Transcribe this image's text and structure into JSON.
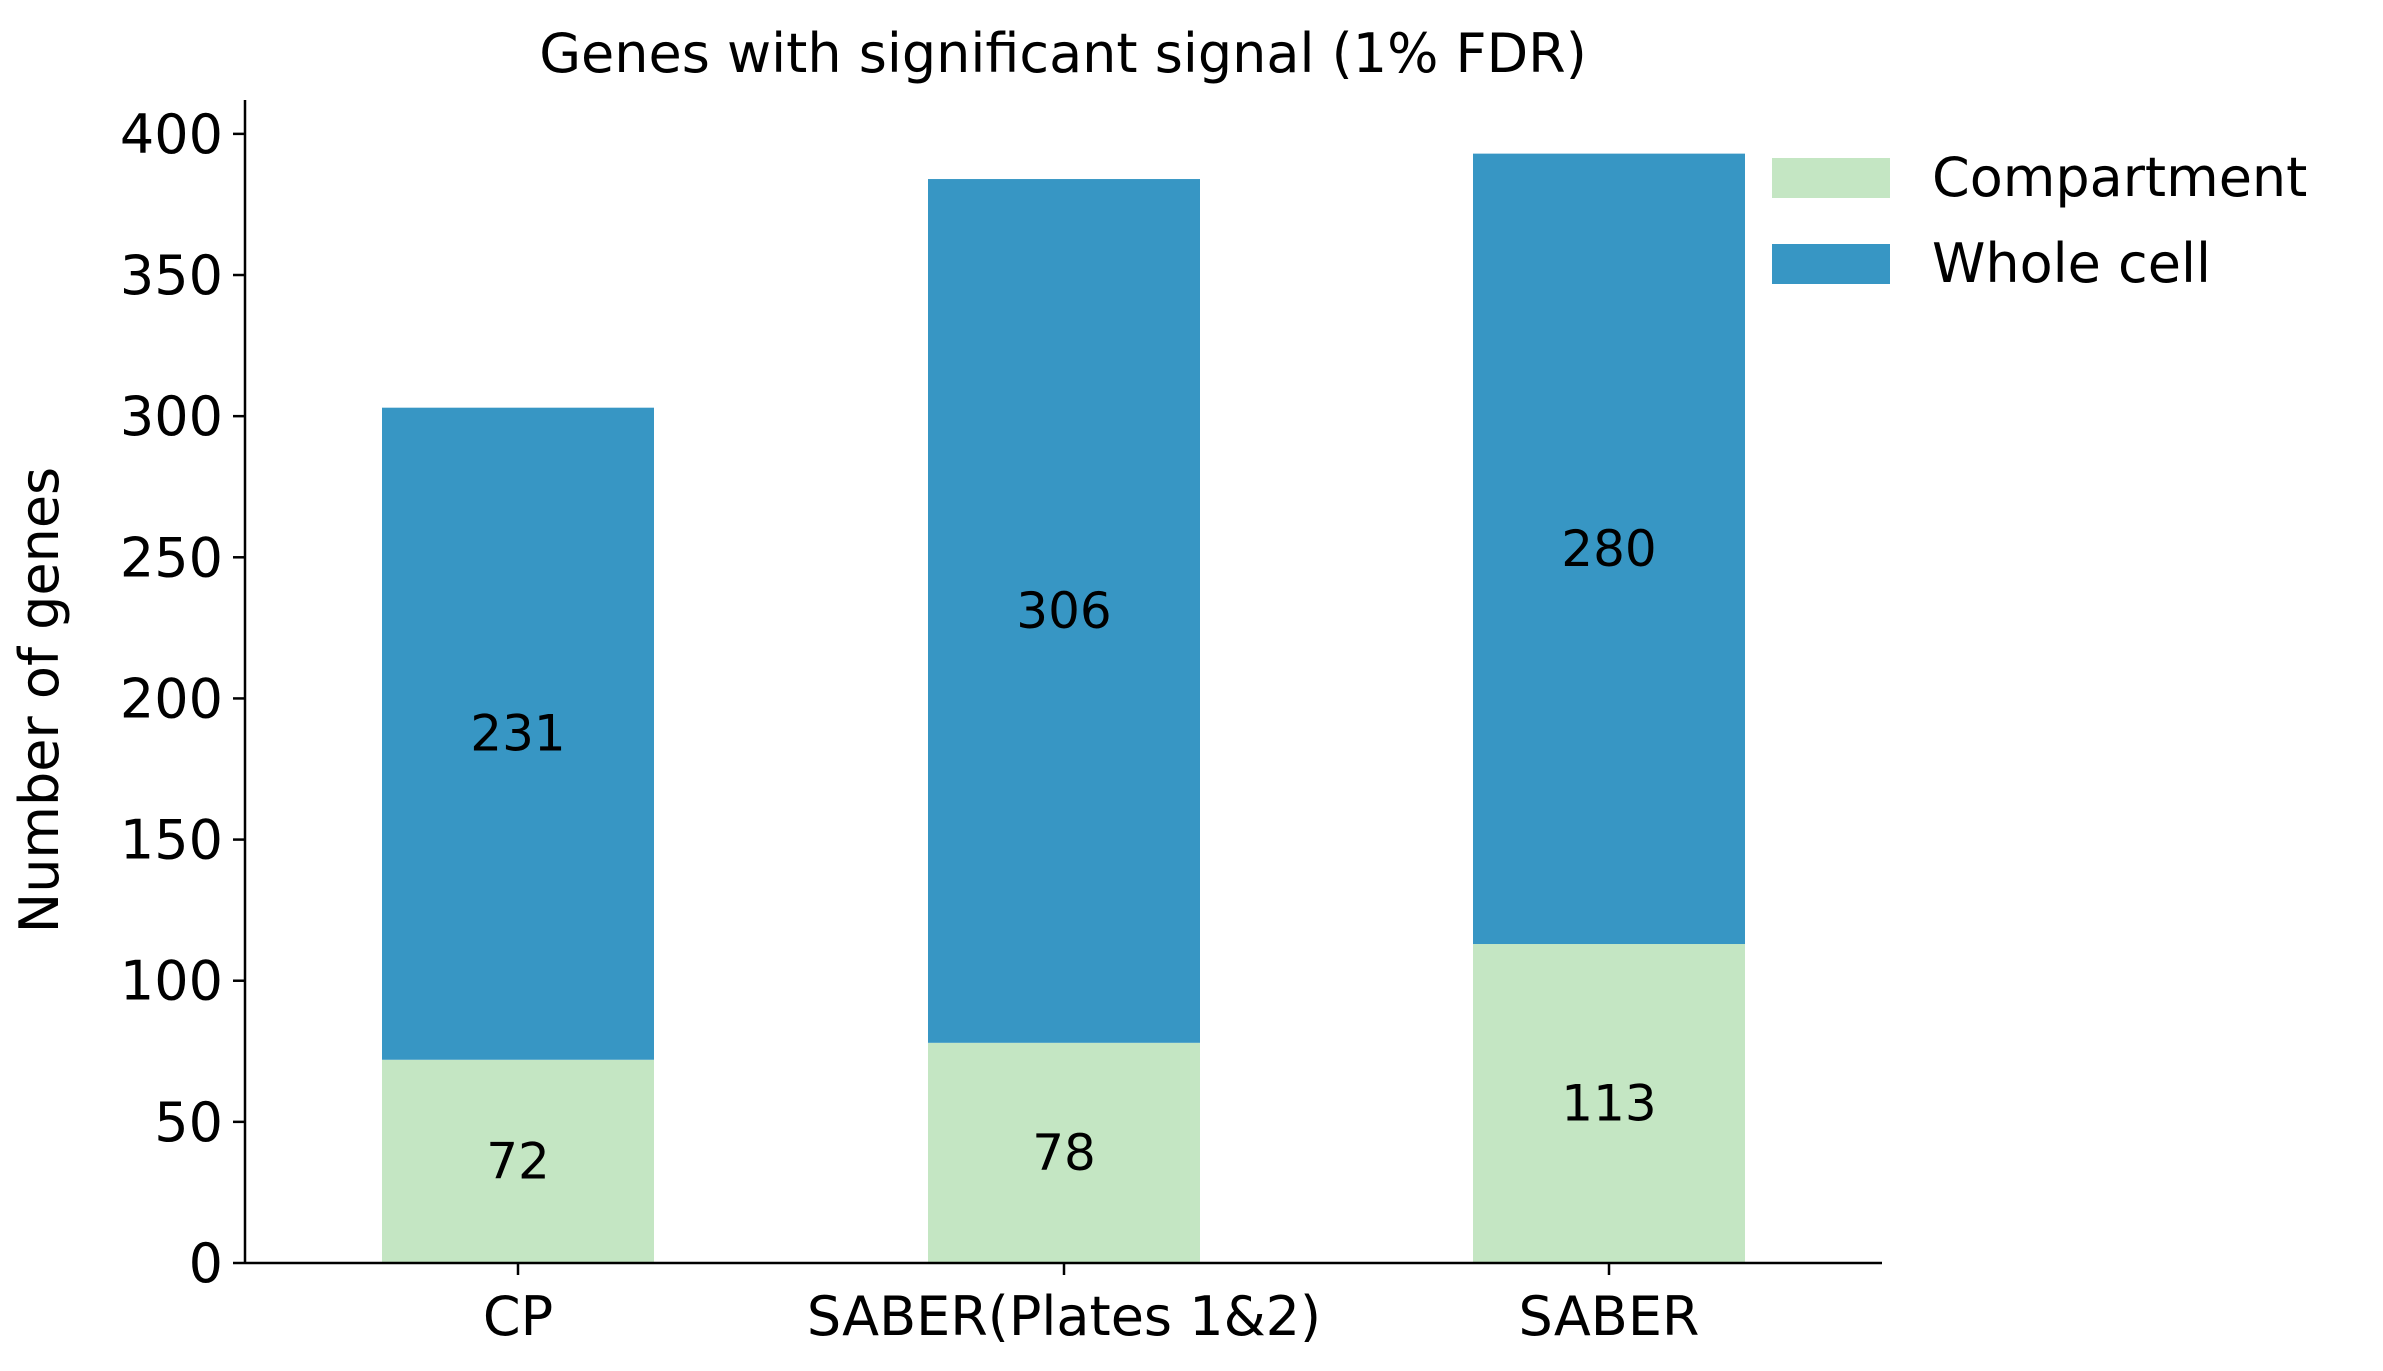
{
  "chart_data": {
    "type": "bar",
    "stacked": true,
    "title": "Genes with significant signal (1% FDR)",
    "xlabel": "",
    "ylabel": "Number of genes",
    "categories": [
      "CP",
      "SABER(Plates 1&2)",
      "SABER"
    ],
    "series": [
      {
        "name": "Compartment",
        "color": "#c4e6c3",
        "values": [
          72,
          78,
          113
        ],
        "labels": [
          "72",
          "78",
          "113"
        ]
      },
      {
        "name": "Whole cell",
        "color": "#3796c4",
        "values": [
          231,
          306,
          280
        ],
        "labels": [
          "231",
          "306",
          "280"
        ]
      }
    ],
    "ylim": [
      0,
      412
    ],
    "yticks": [
      0,
      50,
      100,
      150,
      200,
      250,
      300,
      350,
      400
    ],
    "ytick_labels": [
      "0",
      "50",
      "100",
      "150",
      "200",
      "250",
      "300",
      "350",
      "400"
    ],
    "grid": false,
    "legend_position": "top-right",
    "spines": "left-bottom"
  }
}
